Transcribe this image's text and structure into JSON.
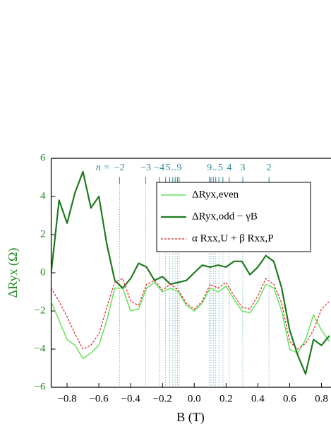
{
  "chart_data": {
    "type": "line",
    "x_label": "B (T)",
    "y_label": "ΔRyx (Ω)",
    "xlim": [
      -0.9,
      0.86
    ],
    "ylim": [
      -6,
      6
    ],
    "xticks": [
      {
        "value": -0.8,
        "label": "−0.8"
      },
      {
        "value": -0.6,
        "label": "−0.6"
      },
      {
        "value": -0.4,
        "label": "−0.4"
      },
      {
        "value": -0.2,
        "label": "−0.2"
      },
      {
        "value": 0,
        "label": "0.0"
      },
      {
        "value": 0.2,
        "label": "0.2"
      },
      {
        "value": 0.4,
        "label": "0.4"
      },
      {
        "value": 0.6,
        "label": "0.6"
      },
      {
        "value": 0.8,
        "label": "0.8"
      }
    ],
    "yticks": [
      {
        "value": -6,
        "label": "−6"
      },
      {
        "value": -4,
        "label": "−4"
      },
      {
        "value": -2,
        "label": "−2"
      },
      0,
      2,
      4,
      6
    ],
    "x": [
      -0.9,
      -0.85,
      -0.8,
      -0.75,
      -0.7,
      -0.65,
      -0.6,
      -0.55,
      -0.5,
      -0.45,
      -0.4,
      -0.35,
      -0.3,
      -0.25,
      -0.2,
      -0.15,
      -0.1,
      -0.05,
      0,
      0.05,
      0.1,
      0.15,
      0.2,
      0.25,
      0.3,
      0.35,
      0.4,
      0.45,
      0.5,
      0.55,
      0.6,
      0.65,
      0.7,
      0.75,
      0.8,
      0.85
    ],
    "series": [
      {
        "name": "ΔRyx,even",
        "color": "#66e05a",
        "width": 1.5,
        "dash": false,
        "values": [
          -1.5,
          -2.5,
          -3.5,
          -3.8,
          -4.5,
          -4.2,
          -3.8,
          -2.5,
          -0.8,
          -0.8,
          -2.0,
          -1.9,
          -0.8,
          -0.5,
          -1.0,
          -0.8,
          -1.0,
          -1.7,
          -2.0,
          -1.6,
          -0.8,
          -1.0,
          -0.7,
          -1.4,
          -2.0,
          -2.1,
          -1.5,
          -0.6,
          -0.8,
          -2.0,
          -4.0,
          -4.2,
          -3.5,
          -2.2,
          -3.0,
          -3.6
        ]
      },
      {
        "name": "ΔRyx,odd − γB",
        "color": "#1e7a1e",
        "width": 2.2,
        "dash": false,
        "values": [
          0,
          3.8,
          2.6,
          4.2,
          5.3,
          3.4,
          4.0,
          1.5,
          -0.4,
          -0.8,
          -0.3,
          0.5,
          0.3,
          -0.4,
          -0.2,
          -0.6,
          -0.5,
          -0.4,
          0,
          0.4,
          0.3,
          0.4,
          0.3,
          0.6,
          0.6,
          -0.1,
          0.3,
          0.9,
          0.6,
          -0.8,
          -3.0,
          -4.3,
          -5.3,
          -3.5,
          -3.8,
          -3.3
        ]
      },
      {
        "name": "α Rxx,U + β Rxx,P",
        "color": "#e02020",
        "width": 1.2,
        "dash": true,
        "values": [
          -0.8,
          -1.5,
          -2.3,
          -3.2,
          -4.0,
          -3.8,
          -3.2,
          -1.8,
          -0.5,
          -0.3,
          -1.5,
          -1.7,
          -0.6,
          -0.4,
          -0.9,
          -0.6,
          -0.9,
          -1.6,
          -1.9,
          -1.5,
          -0.6,
          -0.8,
          -0.5,
          -1.2,
          -1.8,
          -1.9,
          -1.2,
          -0.3,
          -0.6,
          -1.6,
          -3.6,
          -4.0,
          -3.7,
          -3.0,
          -1.9,
          -1.5
        ]
      }
    ],
    "level_lines": [
      -0.47,
      -0.305,
      -0.22,
      -0.18,
      -0.155,
      -0.135,
      -0.12,
      -0.105,
      -0.095,
      0.095,
      0.105,
      0.12,
      0.135,
      0.155,
      0.18,
      0.22,
      0.305,
      0.47
    ],
    "level_prefix": "n =",
    "level_labels": [
      {
        "x": -0.47,
        "text": "−2"
      },
      {
        "x": -0.305,
        "text": "−3"
      },
      {
        "x": -0.22,
        "text": "−4"
      },
      {
        "x": -0.165,
        "text": "5"
      },
      {
        "x": -0.128,
        "text": ".."
      },
      {
        "x": -0.095,
        "text": "9"
      },
      {
        "x": 0.095,
        "text": "9"
      },
      {
        "x": 0.128,
        "text": ".."
      },
      {
        "x": 0.165,
        "text": "5"
      },
      {
        "x": 0.22,
        "text": "4"
      },
      {
        "x": 0.305,
        "text": "3"
      },
      {
        "x": 0.47,
        "text": "2"
      }
    ]
  }
}
